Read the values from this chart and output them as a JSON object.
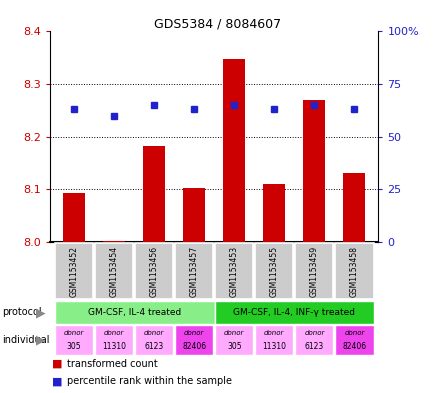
{
  "title": "GDS5384 / 8084607",
  "samples": [
    "GSM1153452",
    "GSM1153454",
    "GSM1153456",
    "GSM1153457",
    "GSM1153453",
    "GSM1153455",
    "GSM1153459",
    "GSM1153458"
  ],
  "transformed_count": [
    8.092,
    8.002,
    8.183,
    8.103,
    8.348,
    8.11,
    8.27,
    8.13
  ],
  "percentile_rank": [
    63,
    60,
    65,
    63,
    65,
    63,
    65,
    63
  ],
  "ylim_left": [
    8.0,
    8.4
  ],
  "ylim_right": [
    0,
    100
  ],
  "yticks_left": [
    8.0,
    8.1,
    8.2,
    8.3,
    8.4
  ],
  "yticks_right": [
    0,
    25,
    50,
    75,
    100
  ],
  "yticklabels_right": [
    "0",
    "25",
    "50",
    "75",
    "100%"
  ],
  "bar_color": "#cc0000",
  "dot_color": "#2222cc",
  "protocol_labels": [
    "GM-CSF, IL-4 treated",
    "GM-CSF, IL-4, INF-γ treated"
  ],
  "protocol_color_light": "#88ee88",
  "protocol_color_dark": "#22cc22",
  "individual_labels": [
    "donor\n305",
    "donor\n11310",
    "donor\n6123",
    "donor\n82406",
    "donor\n305",
    "donor\n11310",
    "donor\n6123",
    "donor\n82406"
  ],
  "individual_colors": [
    "#ffaaff",
    "#ffaaff",
    "#ffaaff",
    "#ee44ee",
    "#ffaaff",
    "#ffaaff",
    "#ffaaff",
    "#ee44ee"
  ],
  "sample_bg": "#cccccc",
  "legend_red": "transformed count",
  "legend_blue": "percentile rank within the sample",
  "left_label_color": "#cc0000",
  "right_label_color": "#2222cc",
  "arrow_color": "#888888"
}
